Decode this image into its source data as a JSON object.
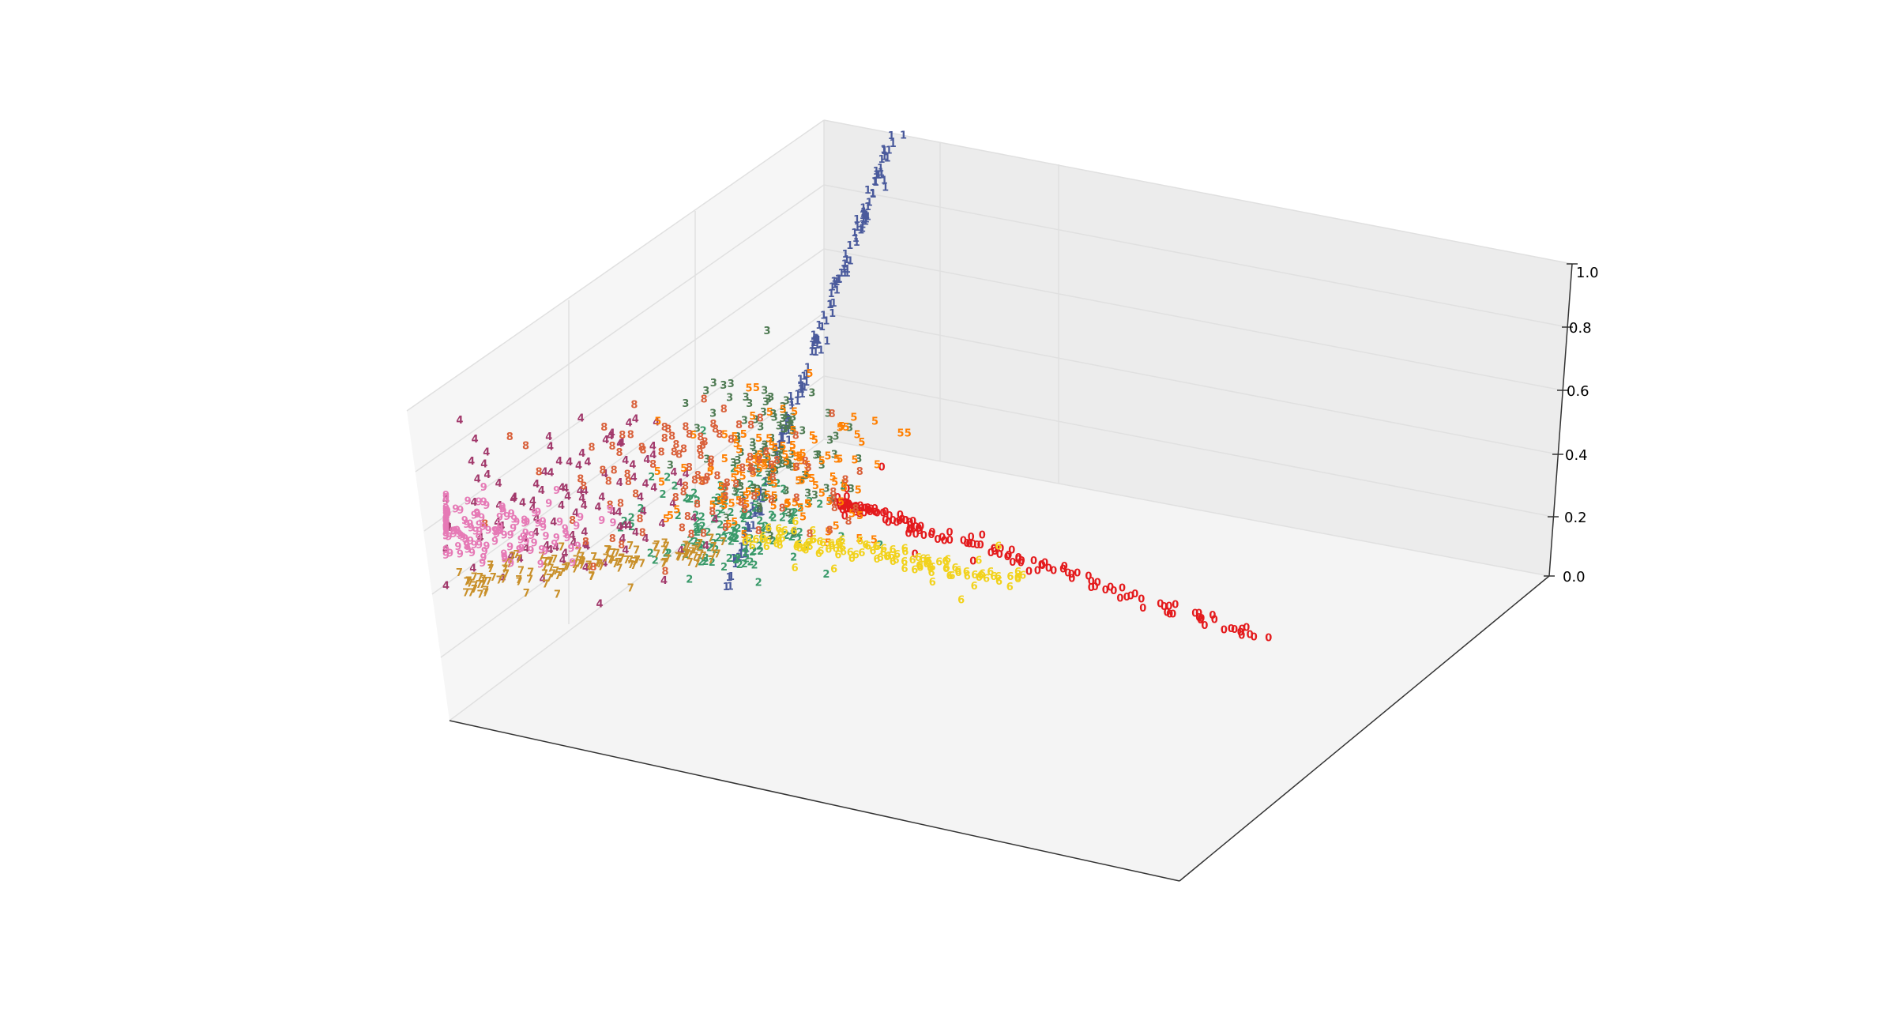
{
  "chart_data": {
    "type": "scatter",
    "projection": "3d",
    "marker": "digit-text",
    "title": "",
    "xlabel": "",
    "ylabel": "",
    "zlabel": "",
    "zticks": [
      "0.0",
      "0.2",
      "0.4",
      "0.6",
      "0.8",
      "1.0"
    ],
    "zlim": [
      0,
      1
    ],
    "grid": true,
    "legend": "none",
    "pane_color": "#f2f2f2",
    "series": [
      {
        "label": "0",
        "color": "#e41a1c",
        "count": 150
      },
      {
        "label": "1",
        "color": "#4a5a9c",
        "count": 150
      },
      {
        "label": "2",
        "color": "#3a9a6a",
        "count": 130
      },
      {
        "label": "3",
        "color": "#4e7a52",
        "count": 110
      },
      {
        "label": "4",
        "color": "#a23a6c",
        "count": 110
      },
      {
        "label": "5",
        "color": "#ff7f00",
        "count": 120
      },
      {
        "label": "6",
        "color": "#f2d21c",
        "count": 120
      },
      {
        "label": "7",
        "color": "#c9902a",
        "count": 130
      },
      {
        "label": "8",
        "color": "#d9603a",
        "count": 110
      },
      {
        "label": "9",
        "color": "#e67ab6",
        "count": 130
      }
    ]
  }
}
